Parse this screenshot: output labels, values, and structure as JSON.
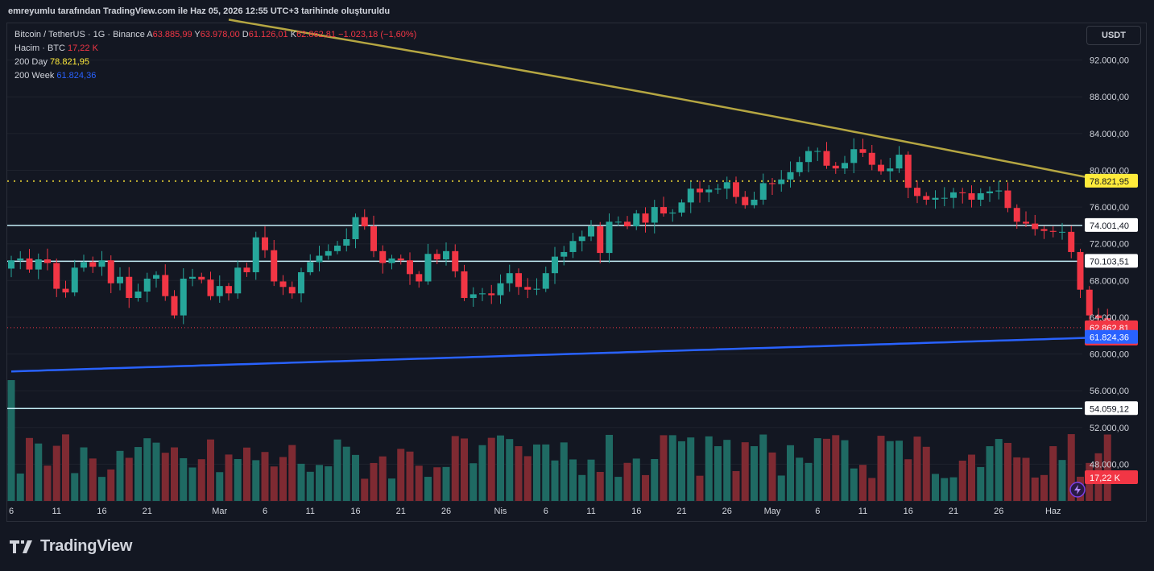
{
  "credit": "emreyumlu tarafından TradingView.com ile Haz 05, 2026 12:55 UTC+3 tarihinde oluşturuldu",
  "currency_button": "USDT",
  "footer_logo": "TradingView",
  "legend": {
    "symbol": "Bitcoin / TetherUS · 1G · Binance",
    "open_label": "A",
    "open": "63.885,99",
    "high_label": "Y",
    "high": "63.978,00",
    "low_label": "D",
    "low": "61.126,01",
    "close_label": "K",
    "close": "62.862,81",
    "change": "−1.023,18 (−1,60%)",
    "volume_label": "Hacim · BTC",
    "volume": "17,22 K",
    "ma200d_label": "200 Day",
    "ma200d": "78.821,95",
    "ma200w_label": "200 Week",
    "ma200w": "61.824,36"
  },
  "colors": {
    "up": "#26a69a",
    "down": "#f23645",
    "ma200d": "#b5a642",
    "ma200w": "#2962ff",
    "hline": "#c5eff7",
    "background": "#131722"
  },
  "chart_data": {
    "type": "candlestick",
    "ylim": [
      44000,
      96000
    ],
    "y_ticks": [
      {
        "v": 92000,
        "label": "92.000,00"
      },
      {
        "v": 88000,
        "label": "88.000,00"
      },
      {
        "v": 84000,
        "label": "84.000,00"
      },
      {
        "v": 80000,
        "label": "80.000,00"
      },
      {
        "v": 76000,
        "label": "76.000,00"
      },
      {
        "v": 72000,
        "label": "72.000,00"
      },
      {
        "v": 68000,
        "label": "68.000,00"
      },
      {
        "v": 64000,
        "label": "64.000,00"
      },
      {
        "v": 60000,
        "label": "60.000,00"
      },
      {
        "v": 56000,
        "label": "56.000,00"
      },
      {
        "v": 52000,
        "label": "52.000,00"
      },
      {
        "v": 48000,
        "label": "48.000,00"
      },
      {
        "v": 44000,
        "label": "44.000,00"
      }
    ],
    "x_ticks": [
      {
        "i": 0,
        "label": "6"
      },
      {
        "i": 5,
        "label": "11"
      },
      {
        "i": 10,
        "label": "16"
      },
      {
        "i": 15,
        "label": "21"
      },
      {
        "i": 23,
        "label": "Mar"
      },
      {
        "i": 28,
        "label": "6"
      },
      {
        "i": 33,
        "label": "11"
      },
      {
        "i": 38,
        "label": "16"
      },
      {
        "i": 43,
        "label": "21"
      },
      {
        "i": 48,
        "label": "26"
      },
      {
        "i": 54,
        "label": "Nis"
      },
      {
        "i": 59,
        "label": "6"
      },
      {
        "i": 64,
        "label": "11"
      },
      {
        "i": 69,
        "label": "16"
      },
      {
        "i": 74,
        "label": "21"
      },
      {
        "i": 79,
        "label": "26"
      },
      {
        "i": 84,
        "label": "May"
      },
      {
        "i": 89,
        "label": "6"
      },
      {
        "i": 94,
        "label": "11"
      },
      {
        "i": 99,
        "label": "16"
      },
      {
        "i": 104,
        "label": "21"
      },
      {
        "i": 109,
        "label": "26"
      },
      {
        "i": 115,
        "label": "Haz"
      }
    ],
    "horizontal_levels": [
      {
        "v": 74001.4,
        "label": "74.001,40"
      },
      {
        "v": 70103.51,
        "label": "70.103,51"
      },
      {
        "v": 54059.12,
        "label": "54.059,12"
      }
    ],
    "ma200d_level": {
      "v": 78821.95,
      "label": "78.821,95"
    },
    "last_price": {
      "v": 62862.81,
      "label": "62.862,81",
      "countdown": "14:04:49"
    },
    "ma200w_last": {
      "v": 61824.36,
      "label": "61.824,36"
    },
    "volume_last": {
      "label": "17,22 K"
    },
    "close": [
      70200,
      70400,
      69200,
      70300,
      69900,
      67100,
      66700,
      69400,
      70000,
      69500,
      70200,
      67700,
      68400,
      66100,
      66800,
      68200,
      68600,
      66300,
      64200,
      68200,
      68400,
      68100,
      66300,
      67400,
      66600,
      69400,
      68900,
      72700,
      71300,
      67900,
      67300,
      66600,
      68900,
      70000,
      70700,
      71200,
      71800,
      72500,
      74900,
      73900,
      71200,
      69900,
      70400,
      70200,
      68700,
      67900,
      70900,
      70300,
      71200,
      69000,
      66100,
      66500,
      66600,
      66400,
      67700,
      68800,
      67300,
      67000,
      67100,
      68800,
      70600,
      71100,
      72300,
      72800,
      73900,
      71000,
      74400,
      74400,
      73900,
      75300,
      74300,
      76000,
      75300,
      75400,
      76500,
      78000,
      77600,
      77900,
      78000,
      78700,
      77100,
      76200,
      76800,
      78600,
      78500,
      79000,
      79800,
      80900,
      82100,
      82100,
      80500,
      80200,
      80800,
      82300,
      81900,
      80600,
      79900,
      80200,
      81700,
      78100,
      77200,
      76800,
      77000,
      77000,
      77600,
      77500,
      76800,
      77500,
      77700,
      77800,
      75900,
      74400,
      74200,
      73600,
      73400,
      73300,
      73300,
      71100,
      67000,
      64200,
      63900,
      62862
    ]
  }
}
